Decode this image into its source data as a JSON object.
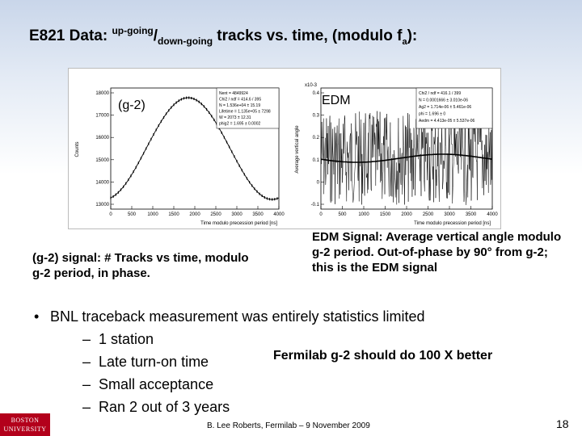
{
  "title": {
    "prefix": "E821 Data: ",
    "up": "up-going",
    "slash": "/",
    "down": "down-going",
    "middle": " tracks vs. time, (modulo f",
    "sub": "a",
    "suffix": "):"
  },
  "figure": {
    "left_panel": {
      "label": "(g-2)",
      "ylabel": "Counts",
      "xlabel": "Time modulo precession period [ns]",
      "yticks": [
        "13000",
        "14000",
        "15000",
        "16000",
        "17000",
        "18000"
      ],
      "xticks": [
        "0",
        "500",
        "1000",
        "1500",
        "2000",
        "2500",
        "3000",
        "3500",
        "4000"
      ],
      "stats": [
        "Nent = 4849924",
        "Chi2 / ndf = 414.6 / 395",
        "N = 1.536e+04 ± 15.19",
        "Lifetime = 1.135e+05 ± 7298",
        "W = 2073 ± 12.31",
        "phig2 = 1.695 ± 0.0002"
      ]
    },
    "right_panel": {
      "label": "EDM",
      "ylabel": "Average vertical angle",
      "xlabel": "Time modulo precession period [ns]",
      "exponent": "x10-3",
      "yticks": [
        "-0.1",
        "0",
        "0.1",
        "0.2",
        "0.3",
        "0.4"
      ],
      "xticks": [
        "0",
        "500",
        "1000",
        "1500",
        "2000",
        "2500",
        "3000",
        "3500",
        "4000"
      ],
      "stats": [
        "Chi2 / ndf = 416.1 / 399",
        "N = 0.0001666 ± 3.010e-06",
        "Ag2 = 1.714e-06 ± 5.461e-06",
        "phi = 1.696 ± 0",
        "Aedm = 4.413e-05 ± 5.537e-06"
      ]
    }
  },
  "captions": {
    "left": "(g-2) signal: # Tracks vs time, modulo g-2 period, in phase.",
    "right": "EDM Signal: Average vertical angle modulo g-2 period. Out-of-phase by 90° from g-2; this is the EDM signal"
  },
  "bullets": {
    "main": "BNL traceback measurement was entirely statistics limited",
    "subs": [
      "1 station",
      "Late turn-on time",
      "Small acceptance",
      "Ran 2 out of 3 years"
    ]
  },
  "callout": "Fermilab g-2 should do 100 X better",
  "logo": {
    "line1": "BOSTON",
    "line2": "UNIVERSITY"
  },
  "footer": "B. Lee Roberts, Fermilab – 9 November 2009",
  "page_number": "18"
}
